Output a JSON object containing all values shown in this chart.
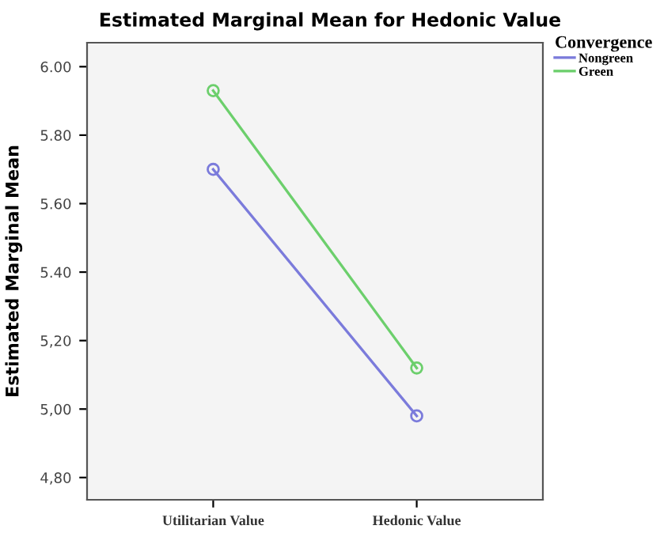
{
  "chart_data": {
    "type": "line",
    "title": "Estimated Marginal Mean for Hedonic Value",
    "ylabel": "Estimated Marginal Mean",
    "legend_title": "Convergence",
    "categories": [
      "Utilitarian Value",
      "Hedonic Value"
    ],
    "series": [
      {
        "name": "Nongreen",
        "color": "#7b7bdb",
        "values": [
          5.7,
          4.98
        ]
      },
      {
        "name": "Green",
        "color": "#6ccf6c",
        "values": [
          5.93,
          5.12
        ]
      }
    ],
    "ylim": [
      4.735,
      6.07
    ],
    "yticks": [
      {
        "value": 4.8,
        "label": "4,80"
      },
      {
        "value": 5.0,
        "label": "5,00"
      },
      {
        "value": 5.2,
        "label": "5,20"
      },
      {
        "value": 5.4,
        "label": "5.40"
      },
      {
        "value": 5.6,
        "label": "5.60"
      },
      {
        "value": 5.8,
        "label": "5.80"
      },
      {
        "value": 6.0,
        "label": "6.00"
      }
    ],
    "marker": "circle",
    "line_style": "solid",
    "grid": false,
    "legend": "top right"
  }
}
